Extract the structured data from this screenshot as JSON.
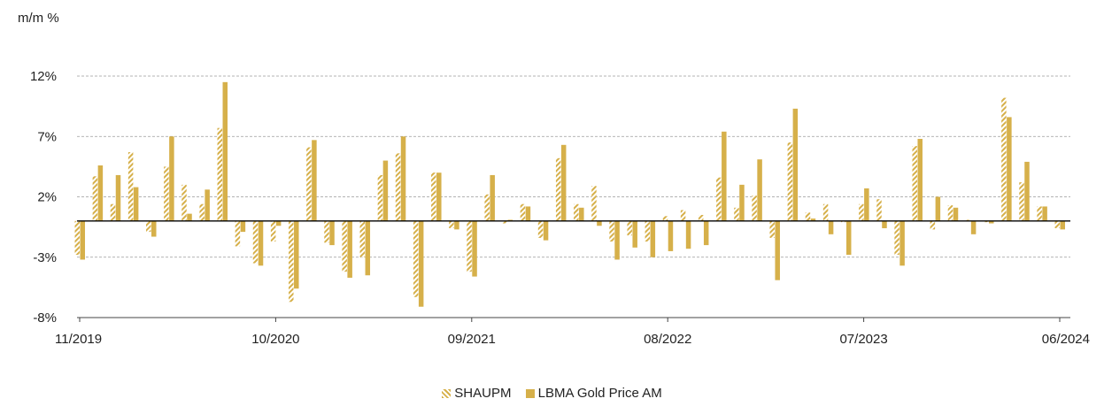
{
  "chart_data": {
    "type": "bar",
    "ylabel": "m/m %",
    "y_ticks": [
      "12%",
      "7%",
      "2%",
      "-3%",
      "-8%"
    ],
    "y_tick_values": [
      12,
      7,
      2,
      -3,
      -8
    ],
    "ylim": [
      -8,
      12
    ],
    "x_tick_labels": [
      "11/2019",
      "10/2020",
      "09/2021",
      "08/2022",
      "07/2023",
      "06/2024"
    ],
    "categories": [
      "11/2019",
      "12/2019",
      "01/2020",
      "02/2020",
      "03/2020",
      "04/2020",
      "05/2020",
      "06/2020",
      "07/2020",
      "08/2020",
      "09/2020",
      "10/2020",
      "11/2020",
      "12/2020",
      "01/2021",
      "02/2021",
      "03/2021",
      "04/2021",
      "05/2021",
      "06/2021",
      "07/2021",
      "08/2021",
      "09/2021",
      "10/2021",
      "11/2021",
      "12/2021",
      "01/2022",
      "02/2022",
      "03/2022",
      "04/2022",
      "05/2022",
      "06/2022",
      "07/2022",
      "08/2022",
      "09/2022",
      "10/2022",
      "11/2022",
      "12/2022",
      "01/2023",
      "02/2023",
      "03/2023",
      "04/2023",
      "05/2023",
      "06/2023",
      "07/2023",
      "08/2023",
      "09/2023",
      "10/2023",
      "11/2023",
      "12/2023",
      "01/2024",
      "02/2024",
      "03/2024",
      "04/2024",
      "05/2024",
      "06/2024"
    ],
    "series": [
      {
        "name": "SHAUPM",
        "style": "hatched",
        "color": "#d6b04a",
        "values": [
          -2.8,
          3.7,
          1.4,
          5.7,
          -0.9,
          4.5,
          3.0,
          1.4,
          7.7,
          -2.1,
          -3.5,
          -1.7,
          -6.7,
          6.1,
          -1.8,
          -4.2,
          -3.0,
          3.8,
          5.6,
          -6.3,
          4.0,
          -0.6,
          -4.2,
          2.2,
          -0.2,
          1.4,
          -1.4,
          5.2,
          1.4,
          2.9,
          -1.7,
          -1.2,
          -1.7,
          0.4,
          0.9,
          0.5,
          3.6,
          1.1,
          2.1,
          -1.4,
          6.5,
          0.7,
          1.4,
          -0.1,
          1.4,
          1.8,
          -2.8,
          6.2,
          -0.7,
          1.3,
          0.1,
          -0.1,
          10.2,
          3.2,
          1.2,
          -0.6
        ]
      },
      {
        "name": "LBMA Gold Price AM",
        "style": "solid",
        "color": "#d6b04a",
        "values": [
          -3.2,
          4.6,
          3.8,
          2.8,
          -1.3,
          7.0,
          0.6,
          2.6,
          11.5,
          -0.9,
          -3.7,
          -0.4,
          -5.6,
          6.7,
          -2.0,
          -4.7,
          -4.5,
          5.0,
          7.0,
          -7.1,
          4.0,
          -0.7,
          -4.6,
          3.8,
          0.1,
          1.2,
          -1.6,
          6.3,
          1.1,
          -0.4,
          -3.2,
          -2.2,
          -3.0,
          -2.5,
          -2.3,
          -2.0,
          7.4,
          3.0,
          5.1,
          -4.9,
          9.3,
          0.2,
          -1.1,
          -2.8,
          2.7,
          -0.6,
          -3.7,
          6.8,
          2.0,
          1.1,
          -1.1,
          -0.2,
          8.6,
          4.9,
          1.2,
          -0.7
        ]
      }
    ],
    "grid": "horizontal-dashed",
    "legend_position": "bottom-center"
  }
}
